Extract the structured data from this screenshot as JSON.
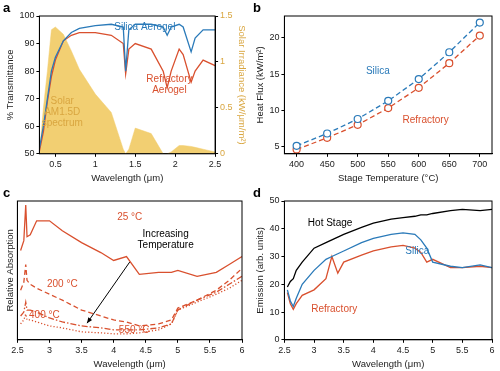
{
  "chart_data": [
    {
      "title": "a",
      "type": "line",
      "xlabel": "Wavelength (μm)",
      "ylabel": "% Transmittance",
      "y2label": "Solar Irradiance (kW/μm/m²)",
      "x": [
        0.3,
        0.35,
        0.4,
        0.45,
        0.5,
        0.6,
        0.7,
        0.8,
        1.0,
        1.2,
        1.35,
        1.38,
        1.42,
        1.5,
        1.7,
        1.85,
        1.9,
        1.95,
        2.05,
        2.1,
        2.2,
        2.25,
        2.35,
        2.5
      ],
      "xlim": [
        0.3,
        2.5
      ],
      "xticks": [
        0.5,
        1,
        1.5,
        2,
        2.5
      ],
      "ylim": [
        50,
        100
      ],
      "yticks": [
        50,
        60,
        70,
        80,
        90,
        100
      ],
      "y2lim": [
        0,
        1.5
      ],
      "y2ticks": [
        0,
        0.5,
        1,
        1.5
      ],
      "grid": false,
      "series": [
        {
          "name": "Silica Aerogel",
          "color": "#2a7ab9",
          "line_style": "solid",
          "marker": "none",
          "values": [
            52,
            60,
            70,
            80,
            85,
            91,
            94,
            95.5,
            96.5,
            97,
            96,
            80,
            95,
            97,
            97,
            96,
            93,
            96,
            97,
            96,
            87,
            92,
            95,
            95
          ]
        },
        {
          "name": "Refractory Aerogel",
          "color": "#d9502e",
          "line_style": "solid",
          "marker": "none",
          "values": [
            51,
            58,
            69,
            78,
            84,
            91,
            93,
            94,
            94,
            93,
            90,
            79,
            88,
            90,
            88,
            80,
            74,
            80,
            88,
            86,
            76,
            80,
            84,
            82
          ]
        },
        {
          "name": "Solar AM1.5D spectrum",
          "color": "#f2cf72",
          "type": "area",
          "axis": "y2",
          "line_style": "solid",
          "marker": "none",
          "values": [
            0.0,
            0.5,
            0.9,
            1.35,
            1.38,
            1.3,
            1.12,
            0.92,
            0.65,
            0.45,
            0.05,
            0.0,
            0.05,
            0.28,
            0.22,
            0.0,
            0.0,
            0.02,
            0.09,
            0.09,
            0.08,
            0.07,
            0.05,
            0.02
          ]
        }
      ]
    },
    {
      "title": "b",
      "type": "line",
      "xlabel": "Stage Temperature (°C)",
      "ylabel": "Heat Flux (kW/m²)",
      "x": [
        400,
        450,
        500,
        550,
        600,
        650,
        700
      ],
      "xlim": [
        380,
        720
      ],
      "xticks": [
        400,
        450,
        500,
        550,
        600,
        650,
        700
      ],
      "ylim": [
        4,
        23
      ],
      "yticks": [
        5,
        10,
        15,
        20
      ],
      "grid": false,
      "series": [
        {
          "name": "Silica",
          "color": "#2a7ab9",
          "line_style": "dashed",
          "marker": "circle",
          "values": [
            5.1,
            6.8,
            8.8,
            11.3,
            14.3,
            18.0,
            22.1
          ]
        },
        {
          "name": "Refractory",
          "color": "#d9502e",
          "line_style": "dashed",
          "marker": "circle",
          "values": [
            4.6,
            6.2,
            8.0,
            10.3,
            13.1,
            16.5,
            20.3
          ]
        }
      ]
    },
    {
      "title": "c",
      "type": "line",
      "xlabel": "Wavelength (μm)",
      "ylabel": "Relative Absorption",
      "annotations": [
        "Increasing Temperature"
      ],
      "x": [
        2.55,
        2.6,
        2.63,
        2.65,
        2.7,
        2.8,
        3.0,
        3.2,
        3.5,
        3.8,
        4.0,
        4.2,
        4.4,
        4.7,
        4.9,
        5.0,
        5.3,
        5.6,
        5.8,
        6.0
      ],
      "xlim": [
        2.5,
        6
      ],
      "xticks": [
        2.5,
        3,
        3.5,
        4,
        4.5,
        5,
        5.5,
        6
      ],
      "ylim": [
        0,
        7
      ],
      "tick_labels": "x",
      "grid": false,
      "series": [
        {
          "name": "25 °C",
          "color": "#d9502e",
          "line_style": "solid",
          "marker": "none",
          "values": [
            4.5,
            5.0,
            6.8,
            5.2,
            5.3,
            6.0,
            6.0,
            5.5,
            4.9,
            4.4,
            4.0,
            4.2,
            3.3,
            3.4,
            3.4,
            3.5,
            3.2,
            3.4,
            3.8,
            4.2
          ]
        },
        {
          "name": "200 °C",
          "color": "#d9502e",
          "line_style": "dashed",
          "marker": "none",
          "values": [
            2.5,
            2.9,
            3.8,
            3.0,
            2.8,
            2.6,
            2.3,
            2.0,
            1.5,
            1.2,
            1.0,
            0.9,
            0.7,
            0.8,
            1.0,
            1.6,
            2.0,
            2.5,
            3.0,
            3.6
          ]
        },
        {
          "name": "400 °C",
          "color": "#d9502e",
          "line_style": "dashdot",
          "marker": "none",
          "values": [
            1.2,
            1.4,
            1.9,
            1.5,
            1.5,
            1.4,
            1.1,
            0.9,
            0.7,
            0.6,
            0.5,
            0.5,
            0.5,
            0.6,
            0.8,
            1.5,
            2.0,
            2.4,
            2.8,
            3.2
          ]
        },
        {
          "name": "550 °C",
          "color": "#d9502e",
          "line_style": "dotted",
          "marker": "none",
          "values": [
            0.8,
            1.0,
            1.3,
            1.0,
            1.0,
            0.9,
            0.7,
            0.6,
            0.4,
            0.35,
            0.3,
            0.3,
            0.35,
            0.5,
            0.8,
            1.5,
            1.9,
            2.3,
            2.6,
            3.0
          ]
        }
      ]
    },
    {
      "title": "d",
      "type": "line",
      "xlabel": "Wavelength (μm)",
      "ylabel": "Emission (arb. units)",
      "x": [
        2.55,
        2.6,
        2.65,
        2.7,
        2.8,
        3.0,
        3.2,
        3.3,
        3.4,
        3.5,
        3.8,
        4.0,
        4.3,
        4.5,
        4.7,
        4.8,
        4.9,
        5.0,
        5.3,
        5.5,
        5.8,
        6.0
      ],
      "xlim": [
        2.5,
        6
      ],
      "xticks": [
        2.5,
        3,
        3.5,
        4,
        4.5,
        5,
        5.5,
        6
      ],
      "ylim": [
        0,
        50
      ],
      "yticks": [
        0,
        10,
        20,
        30,
        40,
        50
      ],
      "grid": false,
      "series": [
        {
          "name": "Hot Stage",
          "color": "#000000",
          "line_style": "solid",
          "marker": "none",
          "values": [
            19,
            21,
            22,
            25,
            28,
            33,
            35,
            36,
            37,
            38,
            40.5,
            42,
            43.5,
            44,
            44.5,
            45,
            45,
            45.5,
            46.5,
            47,
            46.5,
            47
          ]
        },
        {
          "name": "Silica",
          "color": "#2a7ab9",
          "line_style": "solid",
          "marker": "none",
          "values": [
            18,
            14,
            12,
            15,
            20,
            25,
            29,
            30,
            31,
            32,
            35,
            36.5,
            38,
            38.5,
            38,
            36,
            33,
            28,
            26.5,
            26,
            27,
            26
          ]
        },
        {
          "name": "Refractory",
          "color": "#d9502e",
          "line_style": "solid",
          "marker": "none",
          "values": [
            17,
            13,
            11,
            13,
            16,
            18,
            22,
            30,
            24,
            28,
            30.5,
            32,
            33.5,
            34,
            33,
            31.5,
            28,
            29,
            26,
            26,
            26.5,
            26
          ]
        }
      ]
    }
  ]
}
